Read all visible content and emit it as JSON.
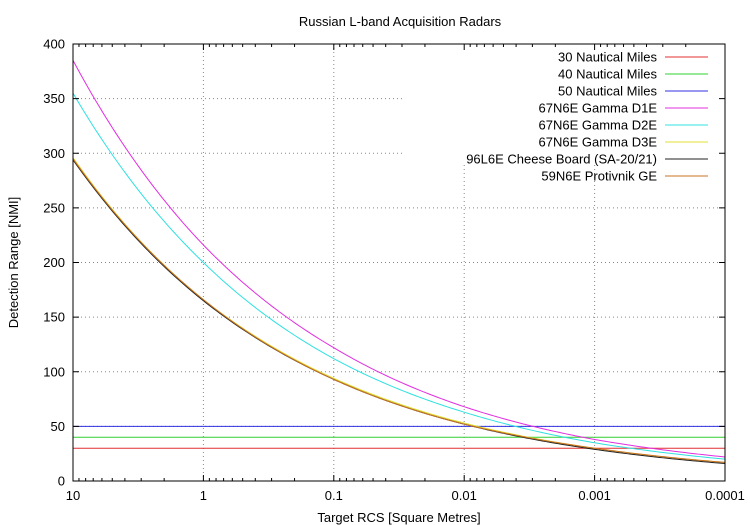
{
  "chart_data": {
    "type": "line",
    "title": "Russian L-band Acquisition Radars",
    "xlabel": "Target RCS [Square Metres]",
    "ylabel": "Detection Range [NMI]",
    "x_scale": "log",
    "x_reversed": true,
    "xlim": [
      10,
      0.0001
    ],
    "ylim": [
      0,
      400
    ],
    "x_ticks": [
      "10",
      "1",
      "0.1",
      "0.01",
      "0.001",
      "0.0001"
    ],
    "x_tick_values": [
      10,
      1,
      0.1,
      0.01,
      0.001,
      0.0001
    ],
    "y_ticks": [
      "0",
      "50",
      "100",
      "150",
      "200",
      "250",
      "300",
      "350",
      "400"
    ],
    "y_tick_values": [
      0,
      50,
      100,
      150,
      200,
      250,
      300,
      350,
      400
    ],
    "grid": true,
    "legend_position": "top-right",
    "series": [
      {
        "name": "30 Nautical Miles",
        "color": "#e03030",
        "x": [
          10,
          1,
          0.1,
          0.01,
          0.001,
          0.0001
        ],
        "y": [
          30,
          30,
          30,
          30,
          30,
          30
        ]
      },
      {
        "name": "40 Nautical Miles",
        "color": "#30d030",
        "x": [
          10,
          1,
          0.1,
          0.01,
          0.001,
          0.0001
        ],
        "y": [
          40,
          40,
          40,
          40,
          40,
          40
        ]
      },
      {
        "name": "50 Nautical Miles",
        "color": "#3030e0",
        "x": [
          10,
          1,
          0.1,
          0.01,
          0.001,
          0.0001
        ],
        "y": [
          50,
          50,
          50,
          50,
          50,
          50
        ]
      },
      {
        "name": "67N6E Gamma D1E",
        "color": "#e030e0",
        "x": [
          10,
          1,
          0.1,
          0.01,
          0.001,
          0.0001
        ],
        "y": [
          385,
          216,
          122,
          68,
          38,
          22
        ]
      },
      {
        "name": "67N6E Gamma D2E",
        "color": "#30e0e0",
        "x": [
          10,
          1,
          0.1,
          0.01,
          0.001,
          0.0001
        ],
        "y": [
          355,
          200,
          112,
          63,
          35,
          20
        ]
      },
      {
        "name": "67N6E Gamma D3E",
        "color": "#e0e030",
        "x": [
          10,
          1,
          0.1,
          0.01,
          0.001,
          0.0001
        ],
        "y": [
          296,
          166,
          94,
          53,
          30,
          17
        ]
      },
      {
        "name": "96L6E Cheese Board (SA-20/21)",
        "color": "#202020",
        "x": [
          10,
          1,
          0.1,
          0.01,
          0.001,
          0.0001
        ],
        "y": [
          294,
          165,
          93,
          52,
          29,
          16
        ]
      },
      {
        "name": "59N6E Protivnik GE",
        "color": "#c87020",
        "x": [
          10,
          1,
          0.1,
          0.01,
          0.001,
          0.0001
        ],
        "y": [
          295,
          166,
          93,
          52,
          30,
          17
        ]
      }
    ]
  }
}
